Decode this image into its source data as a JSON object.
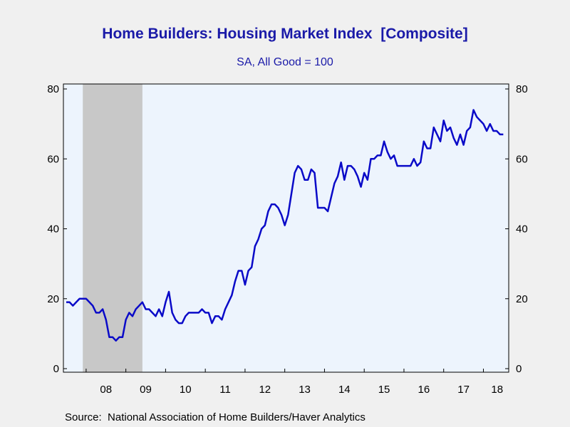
{
  "title": "Home Builders: Housing Market Index  [Composite]",
  "subtitle": "SA, All Good = 100",
  "source": "Source:  National Association of Home Builders/Haver Analytics",
  "colors": {
    "line": "#0a0ac8",
    "plot_background": "#edf4fd",
    "recession_shading": "#c8c8c8",
    "title": "#1a1aa8"
  },
  "chart_data": {
    "type": "line",
    "title": "Home Builders: Housing Market Index  [Composite]",
    "subtitle": "SA, All Good = 100",
    "xlabel": "",
    "ylabel": "",
    "xlim": [
      "2007-07",
      "2018-08"
    ],
    "ylim": [
      0,
      80
    ],
    "y_ticks": [
      0,
      20,
      40,
      60,
      80
    ],
    "y_axis_both_sides": true,
    "x_tick_labels": [
      "08",
      "09",
      "10",
      "11",
      "12",
      "13",
      "14",
      "15",
      "16",
      "17",
      "18"
    ],
    "grid": false,
    "legend": "none",
    "shaded_regions": [
      {
        "start": "2007-12",
        "end": "2009-06",
        "label": "recession"
      }
    ],
    "series": [
      {
        "x_start": "2007-07",
        "frequency": "monthly",
        "values": [
          19,
          19,
          18,
          19,
          20,
          20,
          20,
          19,
          18,
          16,
          16,
          17,
          14,
          9,
          9,
          8,
          9,
          9,
          14,
          16,
          15,
          17,
          18,
          19,
          17,
          17,
          16,
          15,
          17,
          15,
          19,
          22,
          16,
          14,
          13,
          13,
          15,
          16,
          16,
          16,
          16,
          17,
          16,
          16,
          13,
          15,
          15,
          14,
          17,
          19,
          21,
          25,
          28,
          28,
          24,
          28,
          29,
          35,
          37,
          40,
          41,
          45,
          47,
          47,
          46,
          44,
          41,
          44,
          50,
          56,
          58,
          57,
          54,
          54,
          57,
          56,
          46,
          46,
          46,
          45,
          49,
          53,
          55,
          59,
          54,
          58,
          58,
          57,
          55,
          52,
          56,
          54,
          60,
          60,
          61,
          61,
          65,
          62,
          60,
          61,
          58,
          58,
          58,
          58,
          58,
          60,
          58,
          59,
          65,
          63,
          63,
          69,
          67,
          65,
          71,
          68,
          69,
          66,
          64,
          67,
          64,
          68,
          69,
          74,
          72,
          71,
          70,
          68,
          70,
          68,
          68,
          67,
          67
        ]
      }
    ]
  }
}
